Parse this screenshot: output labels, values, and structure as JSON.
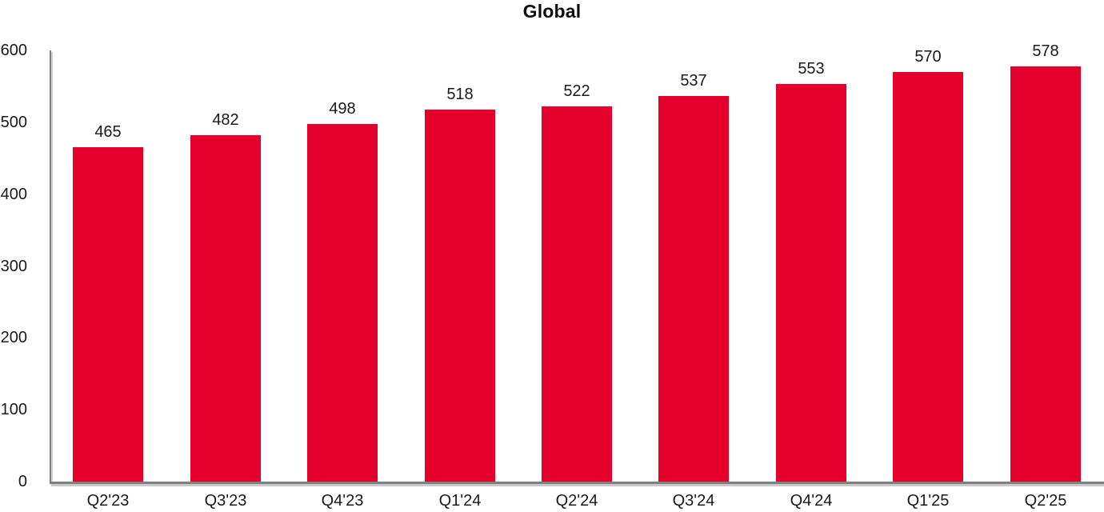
{
  "chart_data": {
    "type": "bar",
    "title": "Global",
    "categories": [
      "Q2'23",
      "Q3'23",
      "Q4'23",
      "Q1'24",
      "Q2'24",
      "Q3'24",
      "Q4'24",
      "Q1'25",
      "Q2'25"
    ],
    "values": [
      465,
      482,
      498,
      518,
      522,
      537,
      553,
      570,
      578
    ],
    "xlabel": "",
    "ylabel": "",
    "ylim": [
      0,
      600
    ],
    "yticks": [
      0,
      100,
      200,
      300,
      400,
      500,
      600
    ],
    "value_labels_shown": true,
    "grid": false,
    "legend": false,
    "bar_color": "#e4002b",
    "axis_color": "#7f7f7f",
    "text_color": "#1a1a1a",
    "background_color": "#ffffff"
  }
}
